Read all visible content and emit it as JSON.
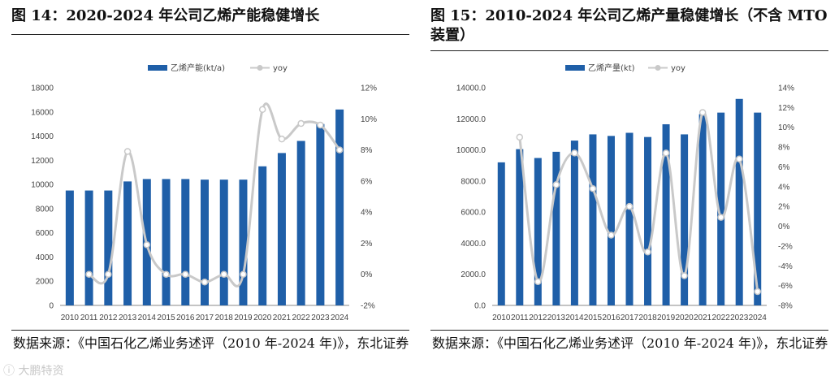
{
  "watermark": "ⓘ 大鹏特资",
  "charts": [
    {
      "title": "图 14：2020-2024 年公司乙烯产能稳健增长",
      "source": "数据来源：《中国石化乙烯业务述评（2010 年-2024 年)》，东北证券",
      "chart_data": {
        "type": "bar+line",
        "categories": [
          "2010",
          "2011",
          "2012",
          "2013",
          "2014",
          "2015",
          "2016",
          "2017",
          "2018",
          "2019",
          "2020",
          "2021",
          "2022",
          "2023",
          "2024"
        ],
        "series": [
          {
            "name": "乙烯产能(kt/a)",
            "kind": "bar",
            "axis": "left",
            "color": "#1F5FA8",
            "values": [
              9500,
              9500,
              9500,
              10250,
              10450,
              10450,
              10450,
              10400,
              10400,
              10400,
              11500,
              12600,
              13600,
              15000,
              16200
            ]
          },
          {
            "name": "yoy",
            "kind": "line",
            "axis": "right",
            "color": "#C9C9C9",
            "values": [
              null,
              0.0,
              0.0,
              7.9,
              1.9,
              0.0,
              0.0,
              -0.5,
              0.0,
              0.0,
              10.6,
              8.7,
              9.7,
              9.6,
              8.0
            ]
          }
        ],
        "left_axis": {
          "min": 0,
          "max": 18000,
          "step": 2000,
          "ticks": [
            "0",
            "2000",
            "4000",
            "6000",
            "8000",
            "10000",
            "12000",
            "14000",
            "16000",
            "18000"
          ]
        },
        "right_axis": {
          "min": -2,
          "max": 12,
          "step": 2,
          "ticks": [
            "-2%",
            "0%",
            "2%",
            "4%",
            "6%",
            "8%",
            "10%",
            "12%"
          ]
        },
        "legend_position": "top-center"
      }
    },
    {
      "title": "图 15：2010-2024 年公司乙烯产量稳健增长（不含 MTO 装置）",
      "source": "数据来源：《中国石化乙烯业务述评（2010 年-2024 年)》，东北证券",
      "chart_data": {
        "type": "bar+line",
        "categories": [
          "2010",
          "2011",
          "2012",
          "2013",
          "2014",
          "2015",
          "2016",
          "2017",
          "2018",
          "2019",
          "2020",
          "2021",
          "2022",
          "2023",
          "2024"
        ],
        "series": [
          {
            "name": "乙烯产量(kt)",
            "kind": "bar",
            "axis": "left",
            "color": "#1F5FA8",
            "values": [
              9200,
              10050,
              9480,
              9880,
              10600,
              11000,
              10900,
              11100,
              10830,
              11650,
              11000,
              12300,
              12400,
              13280,
              12400
            ]
          },
          {
            "name": "yoy",
            "kind": "line",
            "axis": "right",
            "color": "#C9C9C9",
            "values": [
              null,
              9.0,
              -5.6,
              4.2,
              7.4,
              3.8,
              -0.9,
              2.0,
              -2.6,
              7.4,
              -5.0,
              11.5,
              0.9,
              6.8,
              -6.6
            ]
          }
        ],
        "left_axis": {
          "min": 0,
          "max": 14000,
          "step": 2000,
          "ticks": [
            "0.0",
            "2000.0",
            "4000.0",
            "6000.0",
            "8000.0",
            "10000.0",
            "12000.0",
            "14000.0"
          ]
        },
        "right_axis": {
          "min": -8,
          "max": 14,
          "step": 2,
          "ticks": [
            "-8%",
            "-6%",
            "-4%",
            "-2%",
            "0%",
            "2%",
            "4%",
            "6%",
            "8%",
            "10%",
            "12%",
            "14%"
          ]
        },
        "legend_position": "top-center"
      }
    }
  ]
}
